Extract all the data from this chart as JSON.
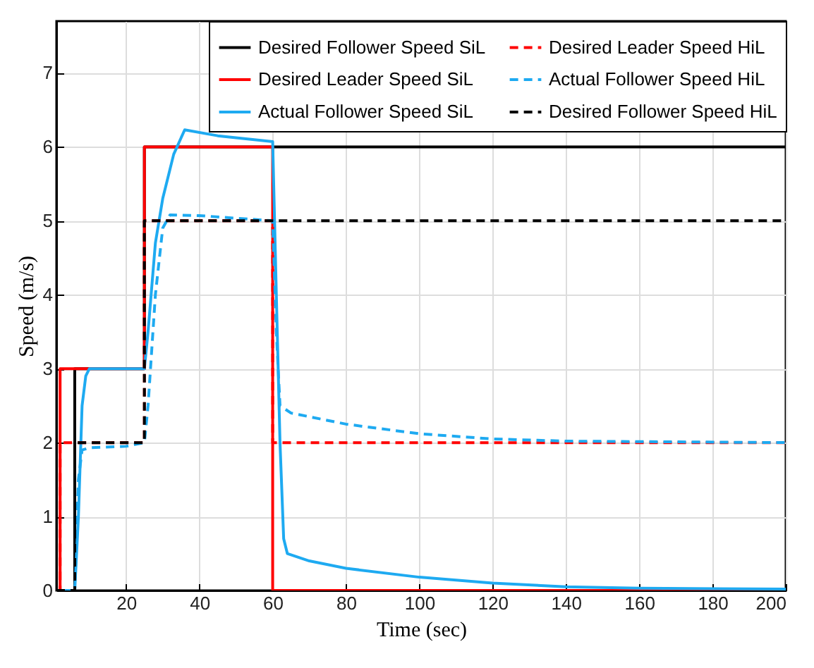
{
  "chart_data": {
    "type": "line",
    "xlabel": "Time (sec)",
    "ylabel": "Speed (m/s)",
    "xlim": [
      1,
      200
    ],
    "ylim": [
      0,
      7.7
    ],
    "xticks": [
      20,
      40,
      60,
      80,
      100,
      120,
      140,
      160,
      180,
      200
    ],
    "yticks": [
      0,
      1,
      2,
      3,
      4,
      5,
      6,
      7
    ],
    "grid": true,
    "legend": "top right",
    "series": [
      {
        "name": "Desired Follower Speed SiL",
        "color": "#000000",
        "line_style": "solid",
        "x": [
          1,
          6,
          6,
          25,
          25,
          200
        ],
        "values": [
          0,
          0,
          3,
          3,
          6,
          6
        ]
      },
      {
        "name": "Desired Leader Speed SiL",
        "color": "#ff0000",
        "line_style": "solid",
        "x": [
          1,
          2,
          2,
          25,
          25,
          60,
          60,
          200
        ],
        "values": [
          0,
          0,
          3,
          3,
          6,
          6,
          0,
          0
        ]
      },
      {
        "name": "Actual Follower Speed SiL",
        "color": "#1eaaf1",
        "line_style": "solid",
        "x": [
          1,
          6,
          7,
          8,
          9,
          10,
          25,
          26,
          28,
          30,
          33,
          36,
          45,
          60,
          61,
          62,
          63,
          64,
          70,
          80,
          100,
          120,
          140,
          160,
          200
        ],
        "values": [
          0,
          0,
          1,
          2.5,
          2.9,
          3,
          3,
          3.5,
          4.7,
          5.3,
          5.9,
          6.23,
          6.15,
          6.07,
          4,
          2,
          0.7,
          0.5,
          0.4,
          0.3,
          0.18,
          0.1,
          0.05,
          0.03,
          0.02
        ]
      },
      {
        "name": "Desired Leader Speed HiL",
        "color": "#ff0000",
        "line_style": "dashed",
        "x": [
          1,
          2,
          2,
          25,
          25,
          60,
          60,
          200
        ],
        "values": [
          0,
          0,
          2,
          2,
          5,
          5,
          2,
          2
        ]
      },
      {
        "name": "Actual Follower Speed HiL",
        "color": "#1eaaf1",
        "line_style": "dashed",
        "x": [
          1,
          6,
          7,
          8,
          10,
          20,
          25,
          26,
          28,
          30,
          32,
          40,
          60,
          61,
          62,
          65,
          80,
          100,
          120,
          140,
          200
        ],
        "values": [
          0,
          0,
          1.5,
          1.9,
          1.93,
          1.95,
          2,
          2.5,
          4,
          4.9,
          5.08,
          5.07,
          5,
          3.5,
          2.5,
          2.4,
          2.25,
          2.12,
          2.05,
          2.02,
          2
        ]
      },
      {
        "name": "Desired Follower Speed HiL",
        "color": "#000000",
        "line_style": "dashed",
        "x": [
          1,
          6,
          6,
          25,
          25,
          200
        ],
        "values": [
          0,
          0,
          2,
          2,
          5,
          5
        ]
      }
    ]
  }
}
